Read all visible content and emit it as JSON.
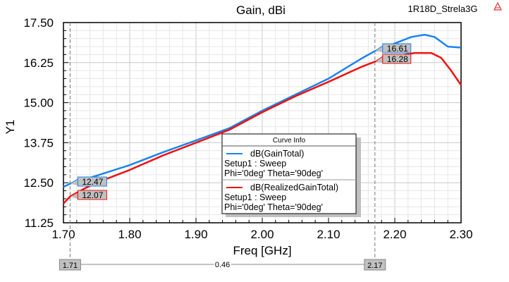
{
  "chart_data": {
    "type": "line",
    "title": "Gain, dBi",
    "project_label": "1R18D_Strela3G",
    "xlabel": "Freq [GHz]",
    "ylabel": "Y1",
    "xlim": [
      1.7,
      2.3
    ],
    "ylim": [
      11.25,
      17.5
    ],
    "x_ticks": [
      "1.70",
      "1.80",
      "1.90",
      "2.00",
      "2.10",
      "2.20",
      "2.30"
    ],
    "y_ticks": [
      "11.25",
      "12.50",
      "13.75",
      "15.00",
      "16.25",
      "17.50"
    ],
    "grid": true,
    "legend": {
      "title": "Curve Info",
      "placement": "bottom-center",
      "entries": [
        {
          "name": "dB(GainTotal)",
          "line2": "Setup1 : Sweep",
          "line3": "Phi='0deg' Theta='90deg'"
        },
        {
          "name": "dB(RealizedGainTotal)",
          "line2": "Setup1 : Sweep",
          "line3": "Phi='0deg' Theta='90deg'"
        }
      ]
    },
    "series": [
      {
        "name": "dB(GainTotal)",
        "color": "#1a84f0",
        "x": [
          1.7,
          1.71,
          1.75,
          1.8,
          1.85,
          1.9,
          1.95,
          2.0,
          2.05,
          2.1,
          2.15,
          2.17,
          2.2,
          2.225,
          2.245,
          2.26,
          2.28,
          2.3
        ],
        "y": [
          12.37,
          12.47,
          12.72,
          13.05,
          13.45,
          13.82,
          14.2,
          14.75,
          15.25,
          15.75,
          16.38,
          16.61,
          16.85,
          17.05,
          17.12,
          17.05,
          16.75,
          16.72
        ]
      },
      {
        "name": "dB(RealizedGainTotal)",
        "color": "#f01010",
        "x": [
          1.7,
          1.71,
          1.73,
          1.75,
          1.8,
          1.85,
          1.9,
          1.95,
          2.0,
          2.05,
          2.1,
          2.15,
          2.17,
          2.2,
          2.23,
          2.255,
          2.27,
          2.285,
          2.3
        ],
        "y": [
          11.85,
          12.07,
          12.3,
          12.5,
          12.9,
          13.35,
          13.75,
          14.15,
          14.7,
          15.2,
          15.65,
          16.12,
          16.28,
          16.45,
          16.55,
          16.55,
          16.4,
          16.0,
          15.55
        ]
      }
    ],
    "markers": [
      {
        "x": 1.71,
        "label": "1.71",
        "values": [
          "12.47",
          "12.07"
        ]
      },
      {
        "x": 2.17,
        "label": "2.17",
        "values": [
          "16.61",
          "16.28"
        ]
      }
    ],
    "delta_label": "0.46"
  }
}
